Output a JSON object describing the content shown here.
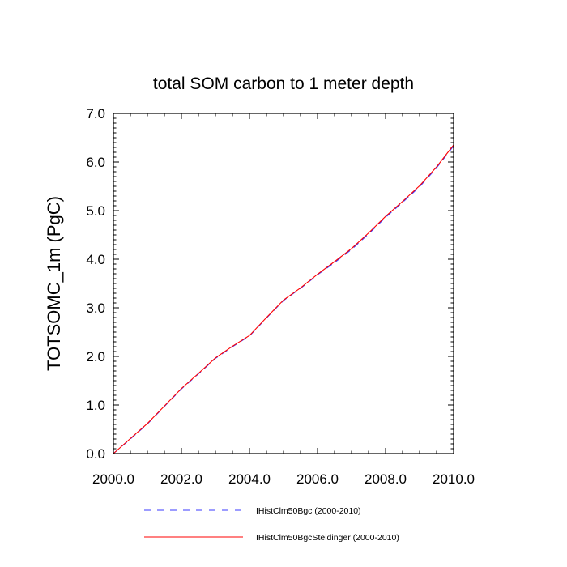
{
  "chart_data": {
    "type": "line",
    "title": "total SOM carbon to 1 meter depth",
    "xlabel": "",
    "ylabel": "TOTSOMC_1m  (PgC)",
    "xlim": [
      2000.0,
      2010.0
    ],
    "ylim": [
      0.0,
      7.0
    ],
    "x_ticks": [
      "2000.0",
      "2002.0",
      "2004.0",
      "2006.0",
      "2008.0",
      "2010.0"
    ],
    "y_ticks": [
      "0.0",
      "1.0",
      "2.0",
      "3.0",
      "4.0",
      "5.0",
      "6.0",
      "7.0"
    ],
    "grid": false,
    "legend_position": "bottom",
    "x": [
      2000.0,
      2000.5,
      2001.0,
      2001.5,
      2002.0,
      2002.5,
      2003.0,
      2003.5,
      2004.0,
      2004.5,
      2005.0,
      2005.5,
      2006.0,
      2006.5,
      2007.0,
      2007.5,
      2008.0,
      2008.5,
      2009.0,
      2009.5,
      2010.0
    ],
    "series": [
      {
        "name": "IHistClm50Bgc (2000-2010)",
        "color": "#3a3aff",
        "dash": "dashed",
        "values": [
          0.0,
          0.3,
          0.61,
          0.97,
          1.33,
          1.64,
          1.96,
          2.2,
          2.42,
          2.79,
          3.15,
          3.4,
          3.68,
          3.93,
          4.2,
          4.52,
          4.86,
          5.17,
          5.49,
          5.88,
          6.33
        ]
      },
      {
        "name": "IHistClm50BgcSteidinger (2000-2010)",
        "color": "#ff0000",
        "dash": "solid",
        "values": [
          0.0,
          0.31,
          0.62,
          0.98,
          1.34,
          1.65,
          1.97,
          2.21,
          2.43,
          2.8,
          3.16,
          3.41,
          3.69,
          3.95,
          4.22,
          4.54,
          4.88,
          5.19,
          5.51,
          5.9,
          6.35
        ]
      }
    ]
  }
}
